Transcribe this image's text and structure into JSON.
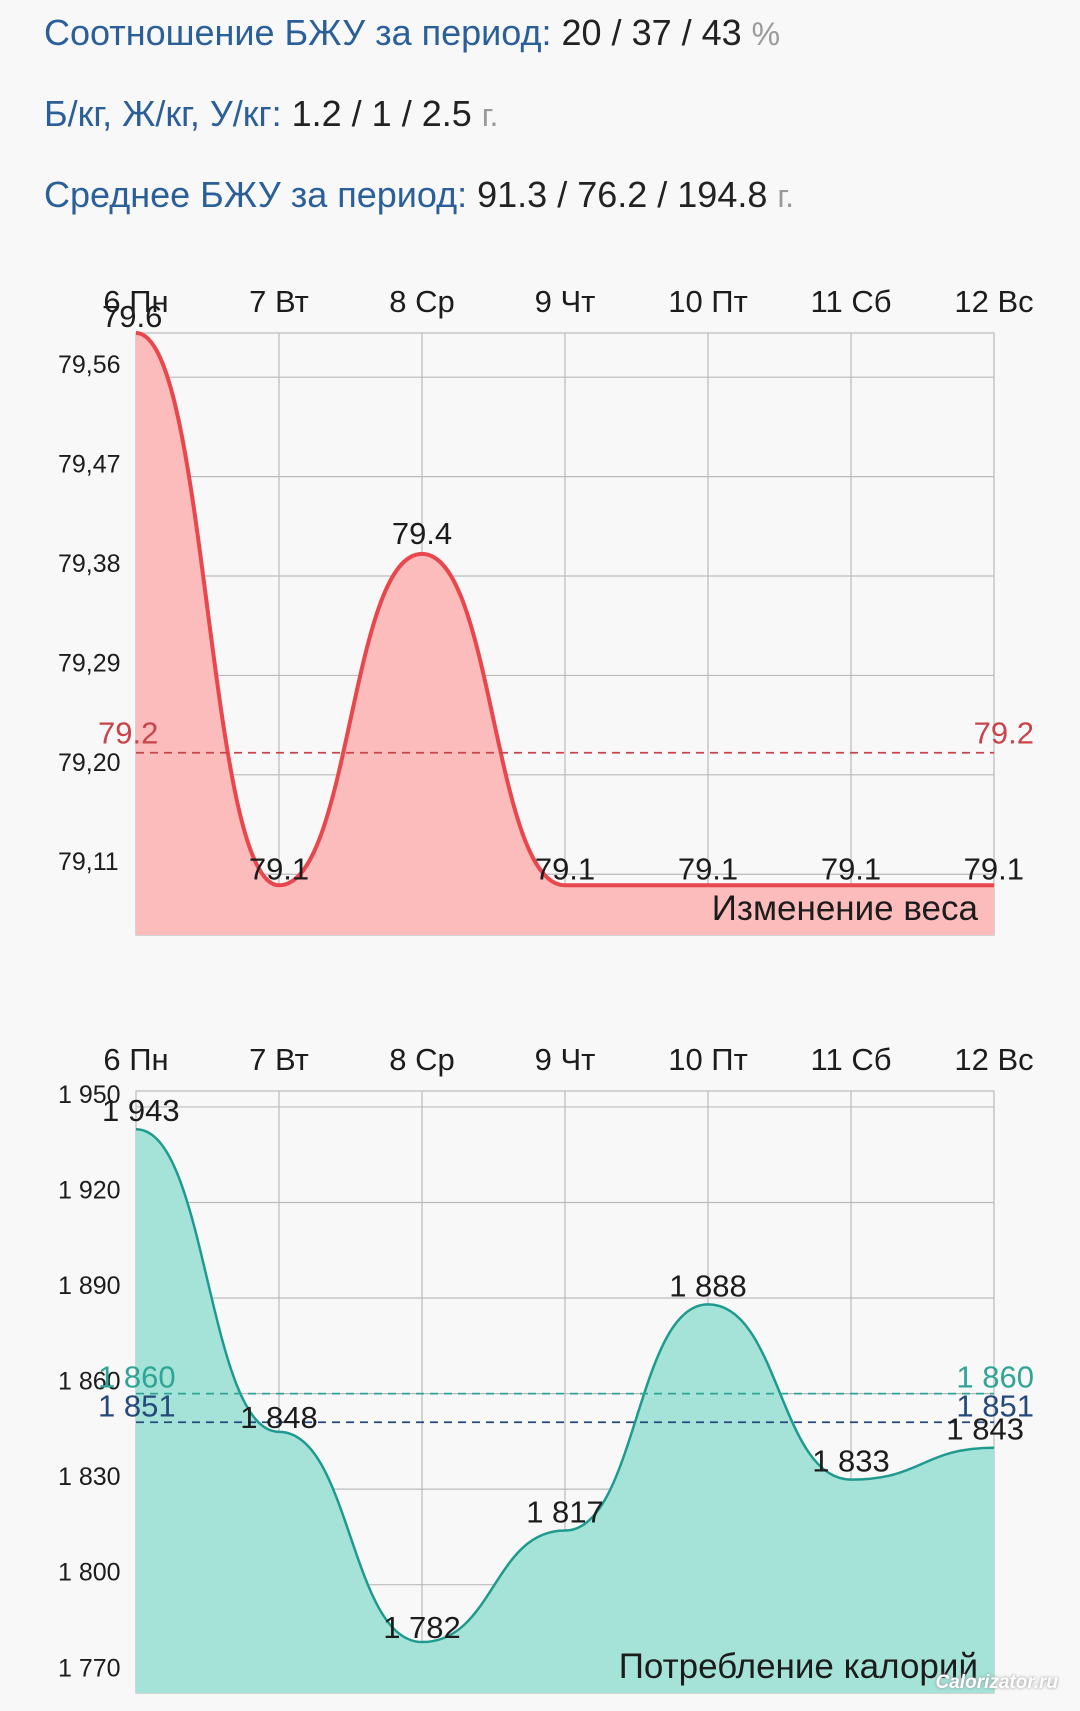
{
  "summary": {
    "ratio": {
      "label": "Соотношение БЖУ за период:",
      "value": "20 / 37 / 43",
      "unit": "%"
    },
    "per_kg": {
      "label": "Б/кг, Ж/кг, У/кг:",
      "value": "1.2 / 1 / 2.5",
      "unit": "г."
    },
    "average": {
      "label": "Среднее БЖУ за период:",
      "value": "91.3 / 76.2 / 194.8",
      "unit": "г."
    }
  },
  "watermark": "Calorizator.ru",
  "colors": {
    "weight_line": "#e8474d",
    "weight_fill": "#fdbcbc",
    "calorie_line": "#1f9a8e",
    "calorie_fill": "#a5e3d9",
    "average_line_weight": "#c8444a",
    "calorie_avg_line_1": "#2ea595",
    "calorie_avg_line_2": "#26497c",
    "grid": "#bbbbbb"
  },
  "chart_data": [
    {
      "type": "area",
      "title": "Изменение веса",
      "categories": [
        "6 Пн",
        "7 Вт",
        "8 Ср",
        "9 Чт",
        "10 Пт",
        "11 Сб",
        "12 Вс"
      ],
      "values": [
        79.6,
        79.1,
        79.4,
        79.1,
        79.1,
        79.1,
        79.1
      ],
      "data_labels": [
        "79.6",
        "79.1",
        "79.4",
        "79.1",
        "79.1",
        "79.1",
        "79.1"
      ],
      "y_ticks": [
        79.11,
        79.2,
        79.29,
        79.38,
        79.47,
        79.56
      ],
      "y_tick_labels": [
        "79,11",
        "79,20",
        "79,29",
        "79,38",
        "79,47",
        "79,56"
      ],
      "ylim": [
        79.055,
        79.6
      ],
      "grid": true,
      "reference_lines": [
        {
          "value": 79.22,
          "label": "79.2",
          "label_position": "both"
        }
      ]
    },
    {
      "type": "area",
      "title": "Потребление калорий",
      "categories": [
        "6 Пн",
        "7 Вт",
        "8 Ср",
        "9 Чт",
        "10 Пт",
        "11 Сб",
        "12 Вс"
      ],
      "values": [
        1943,
        1848,
        1782,
        1817,
        1888,
        1833,
        1843
      ],
      "data_labels": [
        "1 943",
        "1 848",
        "1 782",
        "1 817",
        "1 888",
        "1 833",
        "1 843"
      ],
      "y_ticks": [
        1770,
        1800,
        1830,
        1860,
        1890,
        1920,
        1950
      ],
      "y_tick_labels": [
        "1 770",
        "1 800",
        "1 830",
        "1 860",
        "1 890",
        "1 920",
        "1 950"
      ],
      "ylim": [
        1766,
        1955
      ],
      "grid": true,
      "reference_lines": [
        {
          "value": 1860,
          "label": "1 860",
          "label_position": "both"
        },
        {
          "value": 1851,
          "label": "1 851",
          "label_position": "both"
        }
      ]
    }
  ]
}
